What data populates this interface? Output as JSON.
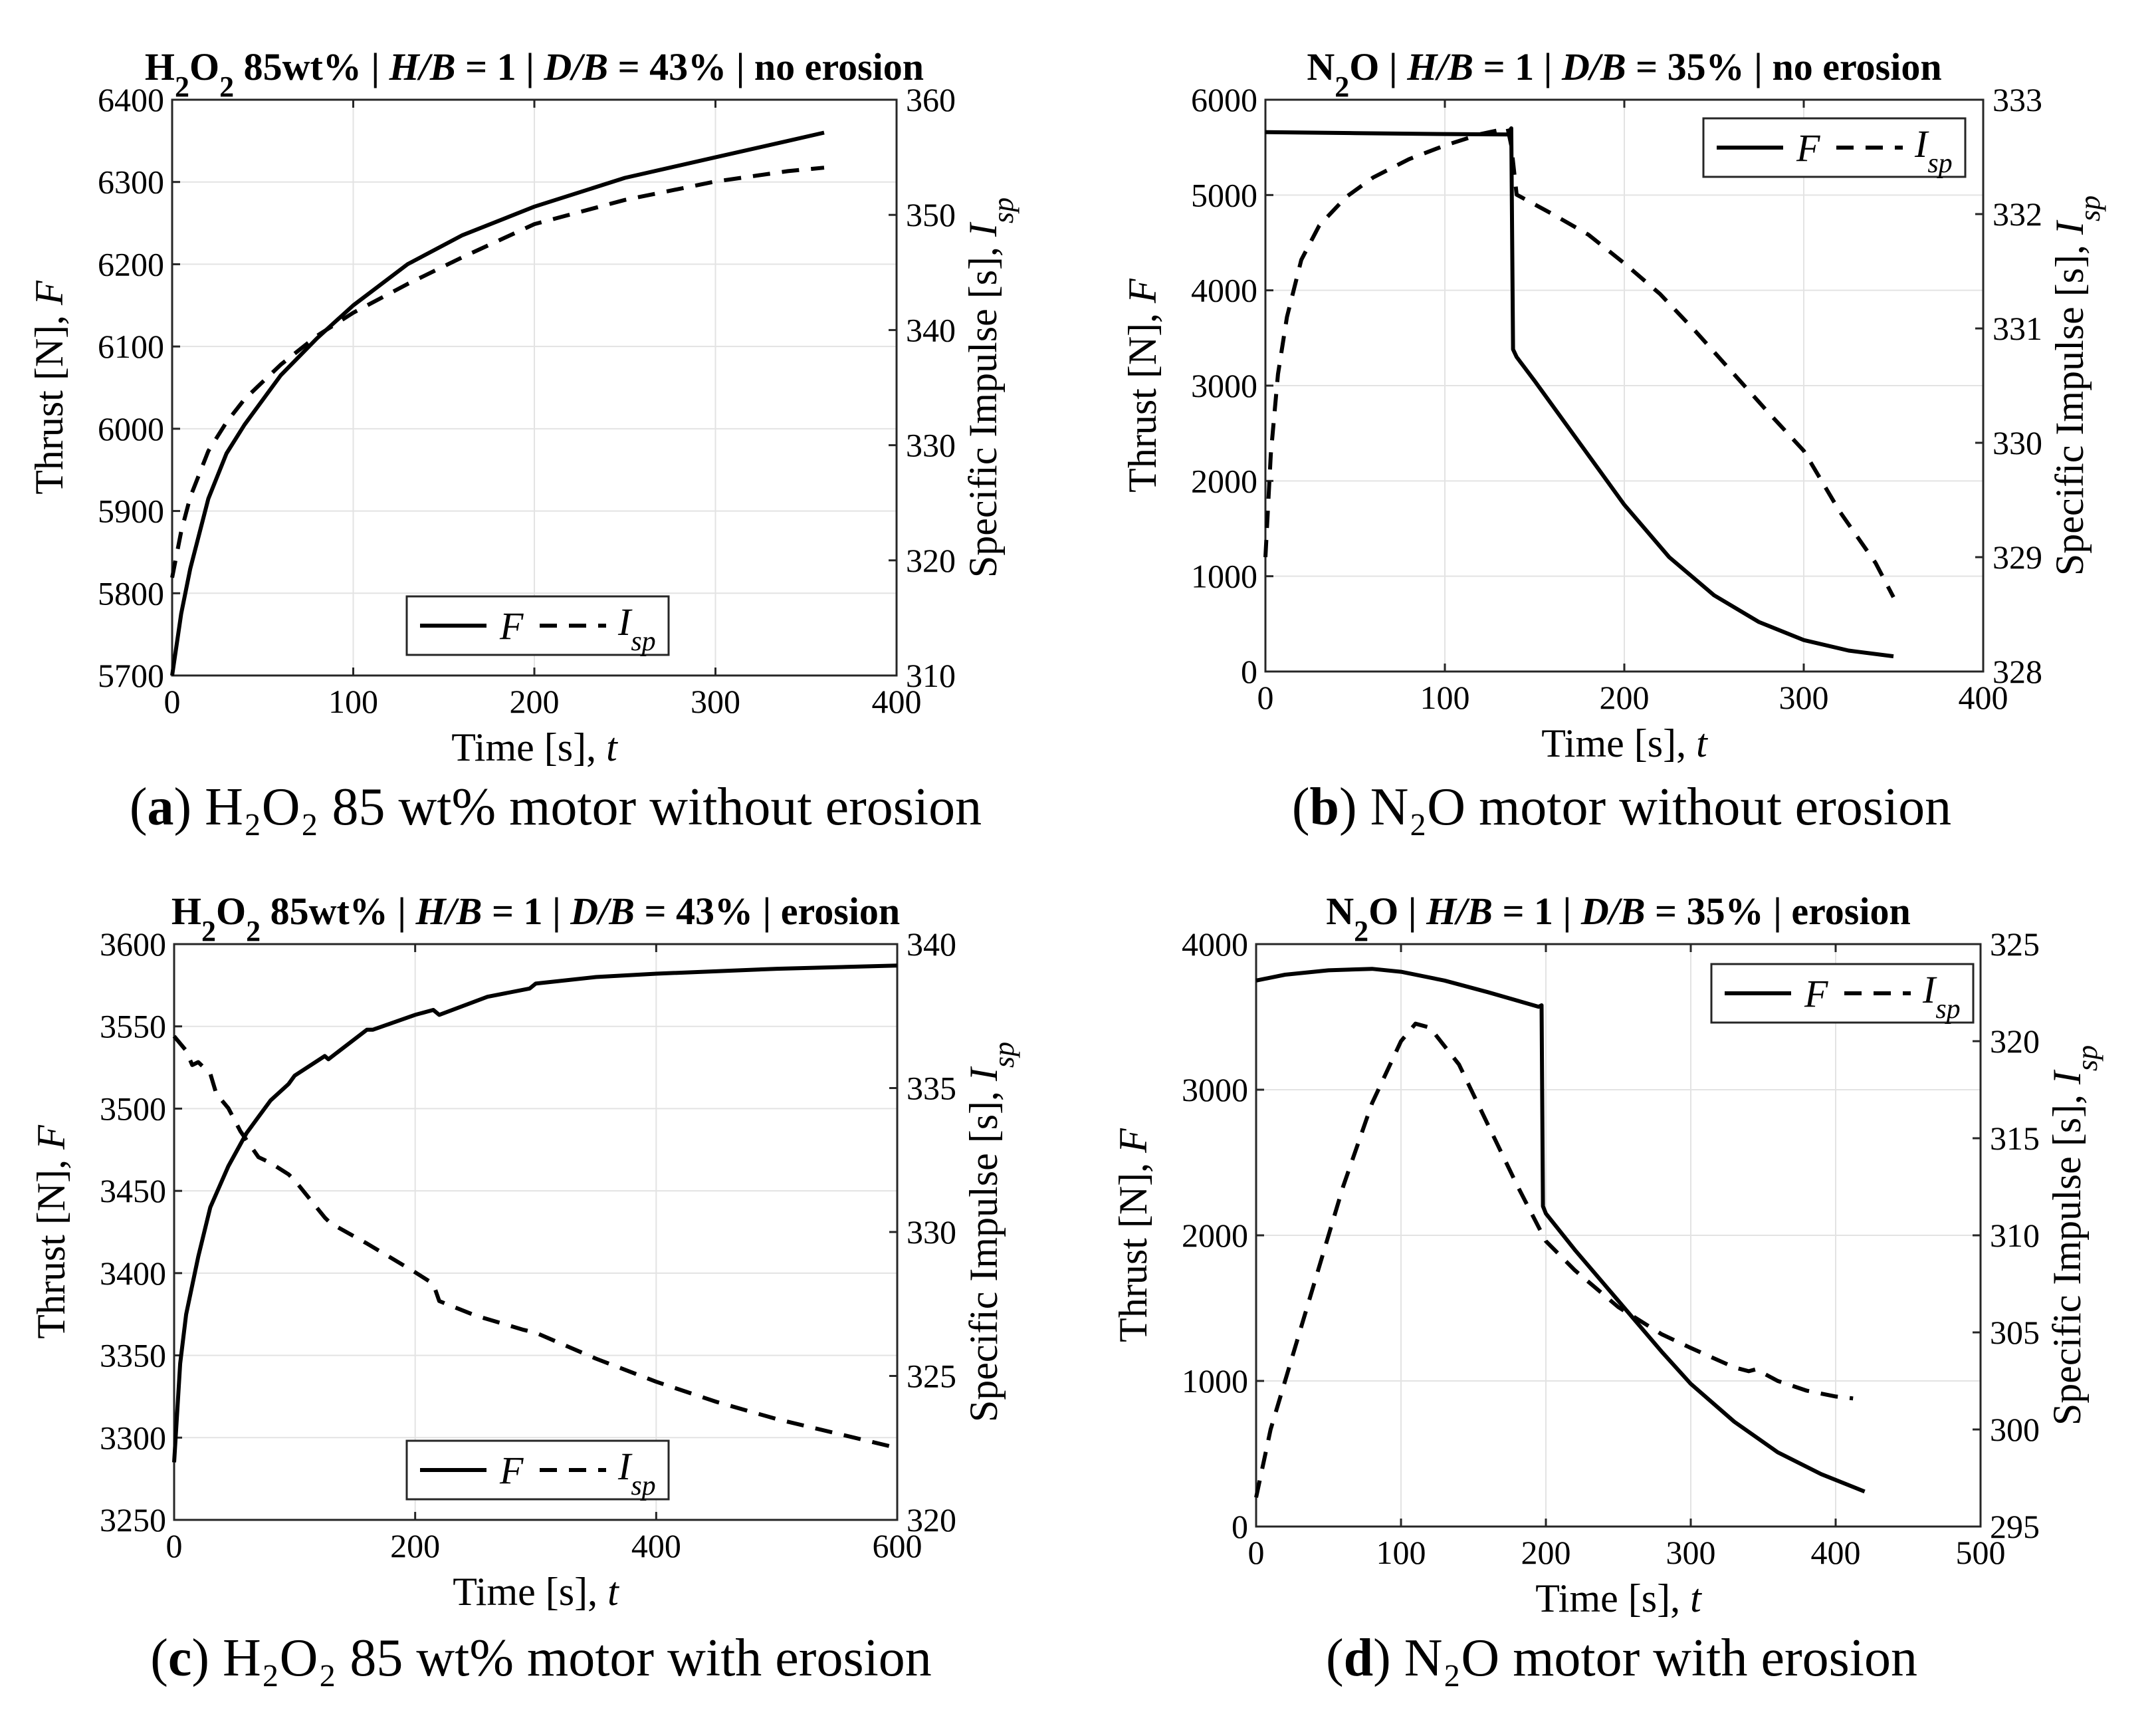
{
  "chart_data": [
    {
      "type": "line",
      "id": "a",
      "title_parts": {
        "species": "H",
        "sub1": "2",
        "o": "O",
        "sub2": "2",
        "rest1": " 85wt% |  ",
        "h": "H/B",
        "rest2": " = 1 |  ",
        "d": "D/B",
        "rest3": " = 43% | no erosion"
      },
      "caption": {
        "letter": "a",
        "text": " H₂O₂ 85 wt% motor without erosion"
      },
      "xlabel": "Time [s],  ",
      "xvar": "t",
      "ylabel": "Thrust [N],  ",
      "yvar": "F",
      "y2label": "Specific Impulse [s],  ",
      "y2var": "I",
      "y2sub": "sp",
      "xlim": [
        0,
        400
      ],
      "xticks": [
        0,
        100,
        200,
        300,
        400
      ],
      "ylim": [
        5700,
        6400
      ],
      "yticks": [
        5700,
        5800,
        5900,
        6000,
        6100,
        6200,
        6300,
        6400
      ],
      "y2lim": [
        310,
        360
      ],
      "y2ticks": [
        310,
        320,
        330,
        340,
        350,
        360
      ],
      "legend": {
        "F": "F",
        "I": "I",
        "sub": "sp",
        "position": "bottom-center"
      },
      "series": [
        {
          "name": "F",
          "axis": "left",
          "style": "solid",
          "x": [
            0,
            5,
            10,
            20,
            30,
            40,
            60,
            80,
            100,
            130,
            160,
            200,
            250,
            300,
            340,
            360
          ],
          "y": [
            5700,
            5775,
            5830,
            5915,
            5970,
            6005,
            6065,
            6110,
            6150,
            6200,
            6235,
            6270,
            6305,
            6330,
            6350,
            6360
          ]
        },
        {
          "name": "Isp",
          "axis": "right",
          "style": "dashed",
          "x": [
            0,
            5,
            10,
            20,
            30,
            40,
            60,
            80,
            100,
            130,
            160,
            200,
            250,
            300,
            340,
            360
          ],
          "y": [
            318.5,
            322.5,
            325.5,
            329.5,
            332,
            334,
            337,
            339.5,
            341.5,
            344,
            346.3,
            349.2,
            351.3,
            352.9,
            353.8,
            354.1
          ]
        }
      ]
    },
    {
      "type": "line",
      "id": "b",
      "title_parts": {
        "species": "N",
        "sub1": "2",
        "o": "O",
        "sub2": "",
        "rest1": " |  ",
        "h": "H/B",
        "rest2": " = 1 |  ",
        "d": "D/B",
        "rest3": " = 35% | no erosion"
      },
      "caption": {
        "letter": "b",
        "text": " N₂O motor without erosion"
      },
      "xlabel": "Time [s],  ",
      "xvar": "t",
      "ylabel": "Thrust [N],  ",
      "yvar": "F",
      "y2label": "Specific Impulse [s],  ",
      "y2var": "I",
      "y2sub": "sp",
      "xlim": [
        0,
        400
      ],
      "xticks": [
        0,
        100,
        200,
        300,
        400
      ],
      "ylim": [
        0,
        6000
      ],
      "yticks": [
        0,
        1000,
        2000,
        3000,
        4000,
        5000,
        6000
      ],
      "y2lim": [
        328,
        333
      ],
      "y2ticks": [
        328,
        329,
        330,
        331,
        332,
        333
      ],
      "legend": {
        "F": "F",
        "I": "I",
        "sub": "sp",
        "position": "top-right"
      },
      "series": [
        {
          "name": "F",
          "axis": "left",
          "style": "solid",
          "x": [
            0,
            50,
            100,
            135,
            137,
            138,
            140,
            150,
            175,
            200,
            225,
            250,
            275,
            300,
            325,
            350
          ],
          "y": [
            5660,
            5650,
            5640,
            5635,
            5700,
            3380,
            3300,
            3050,
            2400,
            1750,
            1200,
            800,
            520,
            330,
            220,
            160
          ]
        },
        {
          "name": "Isp",
          "axis": "right",
          "style": "dashed",
          "x": [
            0,
            3,
            7,
            12,
            20,
            30,
            45,
            60,
            80,
            100,
            120,
            135,
            137,
            140,
            160,
            180,
            200,
            220,
            240,
            260,
            280,
            300,
            320,
            340,
            350
          ],
          "y": [
            329,
            329.9,
            330.6,
            331.1,
            331.6,
            331.9,
            332.15,
            332.32,
            332.48,
            332.6,
            332.7,
            332.75,
            332.6,
            332.17,
            332.0,
            331.82,
            331.57,
            331.3,
            330.97,
            330.62,
            330.27,
            329.93,
            329.4,
            328.95,
            328.65
          ]
        }
      ]
    },
    {
      "type": "line",
      "id": "c",
      "title_parts": {
        "species": "H",
        "sub1": "2",
        "o": "O",
        "sub2": "2",
        "rest1": " 85wt% |  ",
        "h": "H/B",
        "rest2": " = 1 |  ",
        "d": "D/B",
        "rest3": " = 43% | erosion"
      },
      "caption": {
        "letter": "c",
        "text": " H₂O₂ 85 wt% motor with erosion"
      },
      "xlabel": "Time [s],  ",
      "xvar": "t",
      "ylabel": "Thrust [N],  ",
      "yvar": "F",
      "y2label": "Specific Impulse [s],  ",
      "y2var": "I",
      "y2sub": "sp",
      "xlim": [
        0,
        600
      ],
      "xticks": [
        0,
        200,
        400,
        600
      ],
      "ylim": [
        3250,
        3600
      ],
      "yticks": [
        3250,
        3300,
        3350,
        3400,
        3450,
        3500,
        3550,
        3600
      ],
      "y2lim": [
        320,
        340
      ],
      "y2ticks": [
        320,
        325,
        330,
        335,
        340
      ],
      "legend": {
        "F": "F",
        "I": "I",
        "sub": "sp",
        "position": "bottom-center"
      },
      "series": [
        {
          "name": "F",
          "axis": "left",
          "style": "solid",
          "x": [
            0,
            5,
            10,
            20,
            30,
            45,
            60,
            80,
            95,
            100,
            125,
            128,
            160,
            165,
            200,
            215,
            220,
            260,
            295,
            300,
            350,
            400,
            500,
            600
          ],
          "y": [
            3285,
            3345,
            3375,
            3410,
            3440,
            3465,
            3485,
            3505,
            3515,
            3520,
            3532,
            3530,
            3548,
            3548,
            3557,
            3560,
            3557,
            3568,
            3573,
            3576,
            3580,
            3582,
            3585,
            3587
          ]
        },
        {
          "name": "Isp",
          "axis": "right",
          "style": "dashed",
          "x": [
            0,
            10,
            15,
            20,
            30,
            35,
            45,
            55,
            70,
            80,
            95,
            100,
            125,
            130,
            160,
            200,
            215,
            220,
            250,
            290,
            300,
            350,
            400,
            450,
            500,
            550,
            600
          ],
          "y": [
            336.8,
            336.3,
            335.8,
            335.9,
            335.5,
            334.8,
            334.3,
            333.5,
            332.6,
            332.4,
            332.0,
            331.8,
            330.5,
            330.3,
            329.6,
            328.6,
            328.2,
            327.6,
            327.1,
            326.6,
            326.5,
            325.6,
            324.8,
            324.1,
            323.5,
            323.0,
            322.5
          ]
        }
      ]
    },
    {
      "type": "line",
      "id": "d",
      "title_parts": {
        "species": "N",
        "sub1": "2",
        "o": "O",
        "sub2": "",
        "rest1": " |  ",
        "h": "H/B",
        "rest2": " = 1 |  ",
        "d": "D/B",
        "rest3": " = 35% | erosion"
      },
      "caption": {
        "letter": "d",
        "text": " N₂O motor with erosion"
      },
      "xlabel": "Time [s],  ",
      "xvar": "t",
      "ylabel": "Thrust [N],  ",
      "yvar": "F",
      "y2label": "Specific Impulse [s],  ",
      "y2var": "I",
      "y2sub": "sp",
      "xlim": [
        0,
        500
      ],
      "xticks": [
        0,
        100,
        200,
        300,
        400,
        500
      ],
      "ylim": [
        0,
        4000
      ],
      "yticks": [
        0,
        1000,
        2000,
        3000,
        4000
      ],
      "y2lim": [
        295,
        325
      ],
      "y2ticks": [
        295,
        300,
        305,
        310,
        315,
        320,
        325
      ],
      "legend": {
        "F": "F",
        "I": "I",
        "sub": "sp",
        "position": "top-right"
      },
      "series": [
        {
          "name": "F",
          "axis": "left",
          "style": "solid",
          "x": [
            0,
            20,
            50,
            80,
            100,
            130,
            160,
            195,
            197,
            198,
            200,
            220,
            250,
            280,
            300,
            330,
            360,
            390,
            420
          ],
          "y": [
            3750,
            3790,
            3820,
            3830,
            3810,
            3750,
            3670,
            3570,
            3580,
            2200,
            2150,
            1900,
            1550,
            1200,
            980,
            720,
            510,
            360,
            240
          ]
        },
        {
          "name": "Isp",
          "axis": "right",
          "style": "dashed",
          "x": [
            0,
            10,
            20,
            40,
            60,
            80,
            100,
            110,
            120,
            140,
            160,
            180,
            200,
            220,
            250,
            280,
            300,
            330,
            340,
            345,
            360,
            380,
            400,
            412
          ],
          "y": [
            296.5,
            300,
            302.5,
            307.5,
            312.5,
            316.8,
            320,
            320.9,
            320.7,
            318.8,
            315.7,
            312.6,
            309.7,
            308.2,
            306.3,
            304.9,
            304.2,
            303.2,
            303.0,
            303.1,
            302.5,
            302.0,
            301.7,
            301.6
          ]
        }
      ]
    }
  ]
}
